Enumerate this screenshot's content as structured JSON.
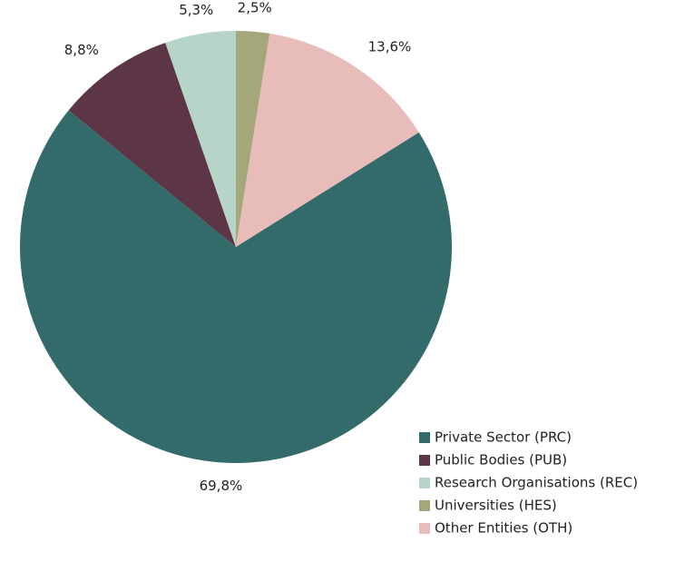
{
  "chart_data": {
    "type": "pie",
    "categories": [
      "Private Sector (PRC)",
      "Public Bodies (PUB)",
      "Research Organisations (REC)",
      "Universities (HES)",
      "Other Entities (OTH)"
    ],
    "values": [
      69.8,
      8.8,
      5.3,
      2.5,
      13.6
    ],
    "value_labels": [
      "69,8%",
      "8,8%",
      "5,3%",
      "2,5%",
      "13,6%"
    ],
    "colors": [
      "#336b6a",
      "#5c3546",
      "#b7d4c8",
      "#a3a77b",
      "#e8bcb9"
    ],
    "legend": "bottom-right"
  }
}
